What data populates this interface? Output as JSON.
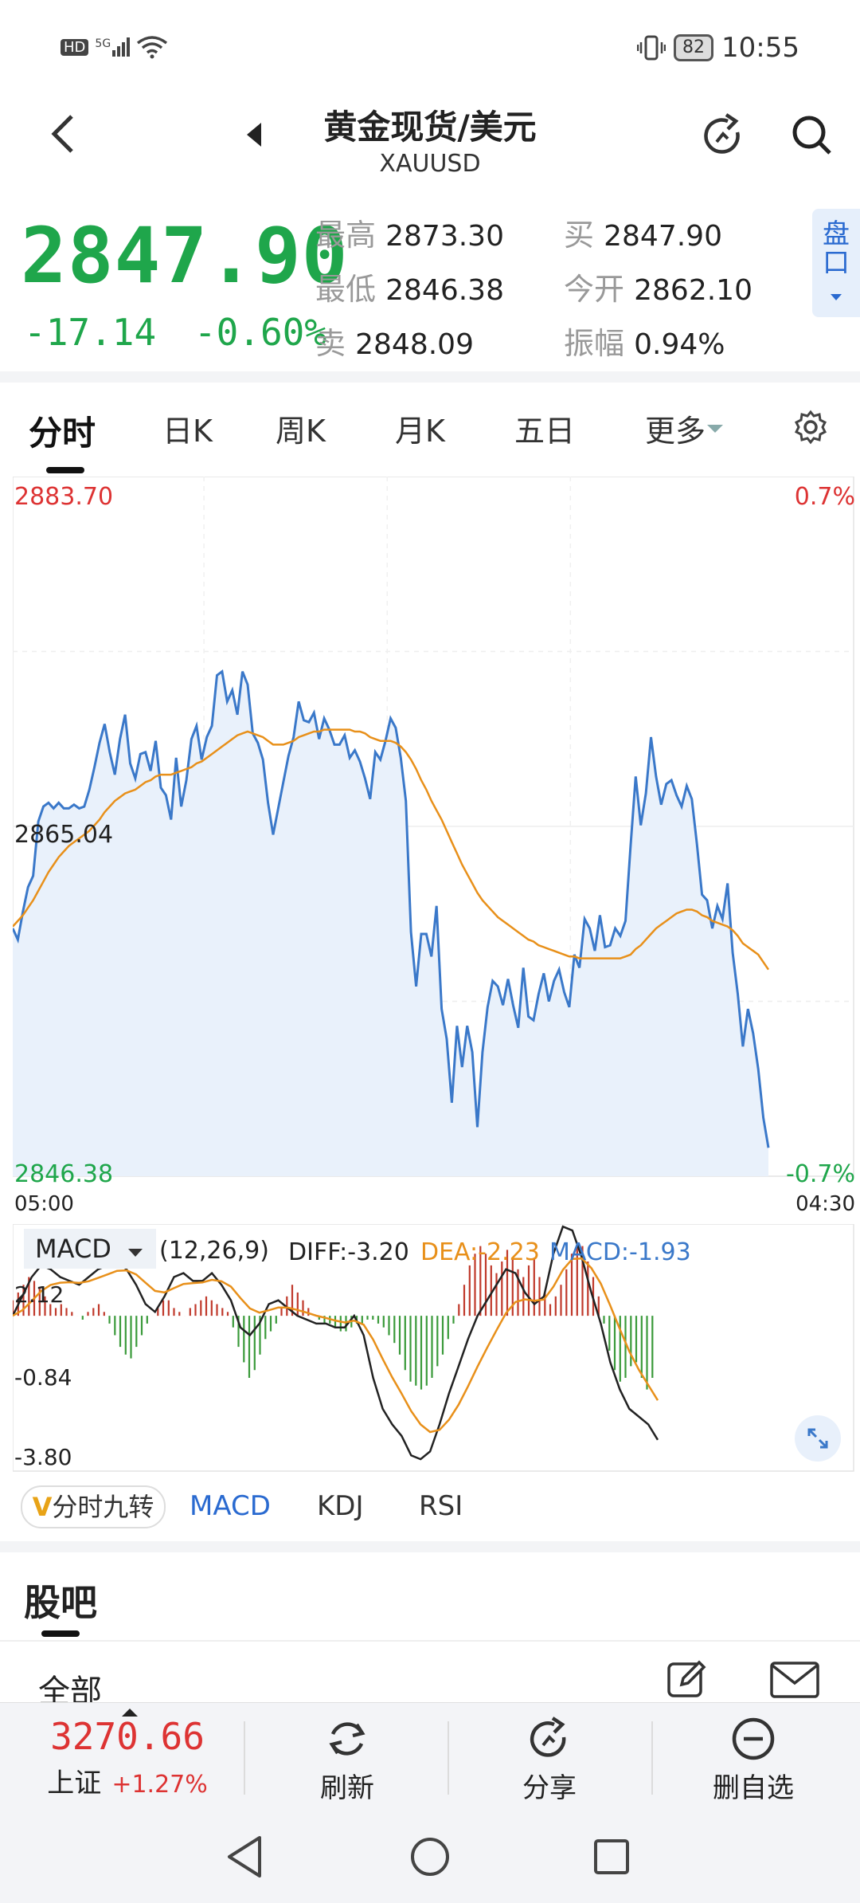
{
  "status": {
    "left_icons": [
      "hd-icon",
      "signal-5g-icon",
      "wifi-icon"
    ],
    "hd": "HD",
    "net": "5G",
    "battery": "82",
    "time": "10:55"
  },
  "header": {
    "title": "黄金现货/美元",
    "subtitle": "XAUUSD"
  },
  "quote": {
    "price": "2847.90",
    "change": "-17.14",
    "change_pct": "-0.60%",
    "high_label": "最高",
    "high": "2873.30",
    "low_label": "最低",
    "low": "2846.38",
    "sell_label": "卖",
    "sell": "2848.09",
    "buy_label": "买",
    "buy": "2847.90",
    "open_label": "今开",
    "open": "2862.10",
    "amp_label": "振幅",
    "amp": "0.94%",
    "pankou": "盘口"
  },
  "tabs": [
    "分时",
    "日K",
    "周K",
    "月K",
    "五日",
    "更多"
  ],
  "chart": {
    "y_top": "2883.70",
    "y_mid": "2865.04",
    "y_bottom": "2846.38",
    "pct_top": "0.7%",
    "pct_bottom": "-0.7%",
    "time_start": "05:00",
    "time_end": "04:30"
  },
  "macd": {
    "name": "MACD",
    "params": "(12,26,9)",
    "diff": "DIFF:-3.20",
    "dea": "DEA:-2.23",
    "macd": "MACD:-1.93",
    "y_top": "2.12",
    "y_mid": "-0.84",
    "y_bottom": "-3.80"
  },
  "indicator_tabs": {
    "nine": "分时九转",
    "macd": "MACD",
    "kdj": "KDJ",
    "rsi": "RSI"
  },
  "guba": {
    "title": "股吧",
    "all": "全部"
  },
  "bottom": {
    "index_value": "3270.66",
    "index_name": "上证",
    "index_pct": "+1.27%",
    "refresh": "刷新",
    "share": "分享",
    "remove": "删自选"
  },
  "colors": {
    "up": "#d33333",
    "down": "#1fa64b",
    "price_line": "#3a78c9",
    "avg_line": "#e8901a",
    "accent": "#2a6ad0"
  },
  "chart_data": {
    "type": "line",
    "series": [
      {
        "name": "",
        "values": [
          2859.6,
          2859.0,
          2860.5,
          2861.8,
          2862.4,
          2865.3,
          2866.1,
          2866.3,
          2866.0,
          2866.3,
          2866.0,
          2866.0,
          2866.2,
          2866.0,
          2866.1,
          2867.0,
          2868.2,
          2869.5,
          2870.5,
          2869.0,
          2867.8,
          2869.7,
          2871.0,
          2868.4,
          2867.6,
          2868.9,
          2869.0,
          2868.0,
          2869.6,
          2867.1,
          2866.7,
          2865.4,
          2868.7,
          2866.1,
          2867.5,
          2869.7,
          2870.4,
          2868.6,
          2869.8,
          2870.4,
          2873.1,
          2873.3,
          2871.7,
          2872.3,
          2871.0,
          2873.3,
          2872.6,
          2870.0,
          2869.5,
          2868.6,
          2866.3,
          2864.6,
          2866.0,
          2867.4,
          2868.8,
          2869.8,
          2871.7,
          2870.7,
          2870.6,
          2871.1,
          2869.7,
          2870.8,
          2870.2,
          2869.4,
          2869.4,
          2869.9,
          2868.7,
          2869.1,
          2868.5,
          2867.6,
          2866.5,
          2869.0,
          2868.6,
          2869.6,
          2870.8,
          2870.3,
          2868.7,
          2866.4,
          2859.4,
          2856.5,
          2859.3,
          2859.3,
          2858.1,
          2860.8,
          2855.3,
          2853.7,
          2850.3,
          2854.4,
          2852.2,
          2854.4,
          2853.0,
          2849.0,
          2853.0,
          2855.4,
          2856.8,
          2856.5,
          2855.5,
          2856.9,
          2855.5,
          2854.3,
          2857.5,
          2854.9,
          2854.7,
          2856.1,
          2857.2,
          2855.7,
          2856.8,
          2857.4,
          2856.2,
          2855.4,
          2858.2,
          2857.5,
          2860.1,
          2859.6,
          2858.4,
          2860.3,
          2858.6,
          2858.7,
          2859.6,
          2859.2,
          2860.0,
          2864.0,
          2867.7,
          2865.1,
          2866.8,
          2869.8,
          2867.7,
          2866.2,
          2867.3,
          2867.5,
          2866.7,
          2866.1,
          2867.2,
          2866.5,
          2864.1,
          2861.4,
          2861.1,
          2859.6,
          2860.8,
          2860.1,
          2862.0,
          2858.3,
          2856.1,
          2853.3,
          2855.3,
          2854.0,
          2852.1,
          2849.5,
          2847.9
        ]
      },
      {
        "name": "",
        "values": [
          2859.7,
          2860.0,
          2860.3,
          2860.7,
          2861.1,
          2861.6,
          2862.1,
          2862.6,
          2863.0,
          2863.4,
          2863.7,
          2864.0,
          2864.2,
          2864.4,
          2864.6,
          2864.8,
          2865.1,
          2865.4,
          2865.8,
          2866.1,
          2866.4,
          2866.6,
          2866.8,
          2866.9,
          2867.0,
          2867.2,
          2867.4,
          2867.5,
          2867.7,
          2867.8,
          2867.8,
          2867.8,
          2867.9,
          2868.0,
          2868.1,
          2868.2,
          2868.4,
          2868.5,
          2868.7,
          2868.9,
          2869.1,
          2869.3,
          2869.5,
          2869.7,
          2869.9,
          2870.0,
          2870.1,
          2870.0,
          2869.9,
          2869.8,
          2869.6,
          2869.4,
          2869.4,
          2869.4,
          2869.5,
          2869.6,
          2869.8,
          2869.9,
          2870.0,
          2870.1,
          2870.1,
          2870.2,
          2870.2,
          2870.2,
          2870.2,
          2870.2,
          2870.2,
          2870.1,
          2870.1,
          2870.0,
          2869.8,
          2869.7,
          2869.6,
          2869.6,
          2869.6,
          2869.5,
          2869.3,
          2869.0,
          2868.6,
          2868.1,
          2867.5,
          2867.0,
          2866.4,
          2865.9,
          2865.4,
          2864.8,
          2864.2,
          2863.6,
          2863.0,
          2862.5,
          2862.0,
          2861.5,
          2861.1,
          2860.8,
          2860.5,
          2860.2,
          2860.0,
          2859.8,
          2859.6,
          2859.4,
          2859.2,
          2859.0,
          2858.9,
          2858.7,
          2858.6,
          2858.5,
          2858.4,
          2858.3,
          2858.2,
          2858.1,
          2858.1,
          2858.0,
          2858.0,
          2858.0,
          2858.0,
          2858.0,
          2858.0,
          2858.0,
          2858.0,
          2858.0,
          2858.1,
          2858.2,
          2858.5,
          2858.7,
          2859.0,
          2859.3,
          2859.6,
          2859.8,
          2860.0,
          2860.2,
          2860.4,
          2860.5,
          2860.6,
          2860.6,
          2860.5,
          2860.3,
          2860.2,
          2860.0,
          2859.9,
          2859.8,
          2859.7,
          2859.5,
          2859.2,
          2858.8,
          2858.6,
          2858.4,
          2858.2,
          2857.8,
          2857.4
        ]
      }
    ],
    "ylim": [
      2846.38,
      2883.7
    ],
    "xlabel": "",
    "ylabel": "",
    "x_start": "05:00",
    "x_end": "04:30",
    "macd_panel": {
      "type": "bar",
      "ylim": [
        -3.8,
        2.12
      ],
      "hist": [
        0.4,
        0.6,
        0.8,
        1.0,
        0.9,
        0.7,
        0.5,
        0.3,
        0.2,
        0.3,
        0.2,
        0.1,
        0.0,
        -0.1,
        0.1,
        0.2,
        0.3,
        0.1,
        -0.2,
        -0.5,
        -0.8,
        -1.0,
        -1.1,
        -0.8,
        -0.5,
        -0.2,
        0.0,
        0.2,
        0.4,
        0.4,
        0.2,
        0.1,
        0.0,
        0.2,
        0.3,
        0.4,
        0.5,
        0.4,
        0.3,
        0.2,
        0.1,
        -0.3,
        -0.8,
        -1.2,
        -1.6,
        -1.4,
        -1.0,
        -0.6,
        -0.4,
        -0.2,
        0.2,
        0.5,
        0.8,
        0.6,
        0.4,
        0.2,
        0.0,
        -0.1,
        -0.2,
        -0.2,
        -0.3,
        -0.4,
        -0.4,
        -0.3,
        -0.2,
        -0.2,
        -0.1,
        -0.1,
        -0.2,
        -0.3,
        -0.5,
        -0.7,
        -1.0,
        -1.4,
        -1.7,
        -1.8,
        -1.9,
        -1.8,
        -1.6,
        -1.3,
        -1.0,
        -0.6,
        -0.2,
        0.3,
        0.8,
        1.3,
        1.6,
        1.8,
        1.6,
        1.3,
        1.1,
        1.4,
        1.7,
        1.5,
        1.2,
        1.0,
        1.3,
        1.5,
        1.0,
        0.6,
        0.3,
        0.5,
        0.8,
        1.2,
        1.6,
        1.9,
        1.8,
        1.4,
        1.0,
        0.5,
        -0.2,
        -0.9,
        -1.4,
        -1.7,
        -1.6,
        -1.3,
        -1.2,
        -1.6,
        -1.9,
        -1.6
      ],
      "diff": [
        0.0,
        0.5,
        1.0,
        1.3,
        1.2,
        1.0,
        0.9,
        0.8,
        1.0,
        1.2,
        1.3,
        1.4,
        1.2,
        0.8,
        0.3,
        0.1,
        0.5,
        1.0,
        1.1,
        0.9,
        0.9,
        1.1,
        0.8,
        0.4,
        -0.3,
        -0.5,
        -0.2,
        0.3,
        0.4,
        0.2,
        0.0,
        -0.1,
        -0.2,
        -0.2,
        -0.3,
        -0.3,
        0.0,
        -0.5,
        -1.6,
        -2.4,
        -2.8,
        -3.1,
        -3.6,
        -3.7,
        -3.5,
        -2.8,
        -2.0,
        -1.3,
        -0.6,
        0.0,
        0.4,
        0.8,
        1.2,
        1.1,
        0.6,
        0.3,
        0.5,
        1.6,
        2.3,
        2.2,
        1.5,
        0.6,
        -0.2,
        -1.2,
        -1.9,
        -2.4,
        -2.6,
        -2.8,
        -3.2
      ]
    }
  }
}
